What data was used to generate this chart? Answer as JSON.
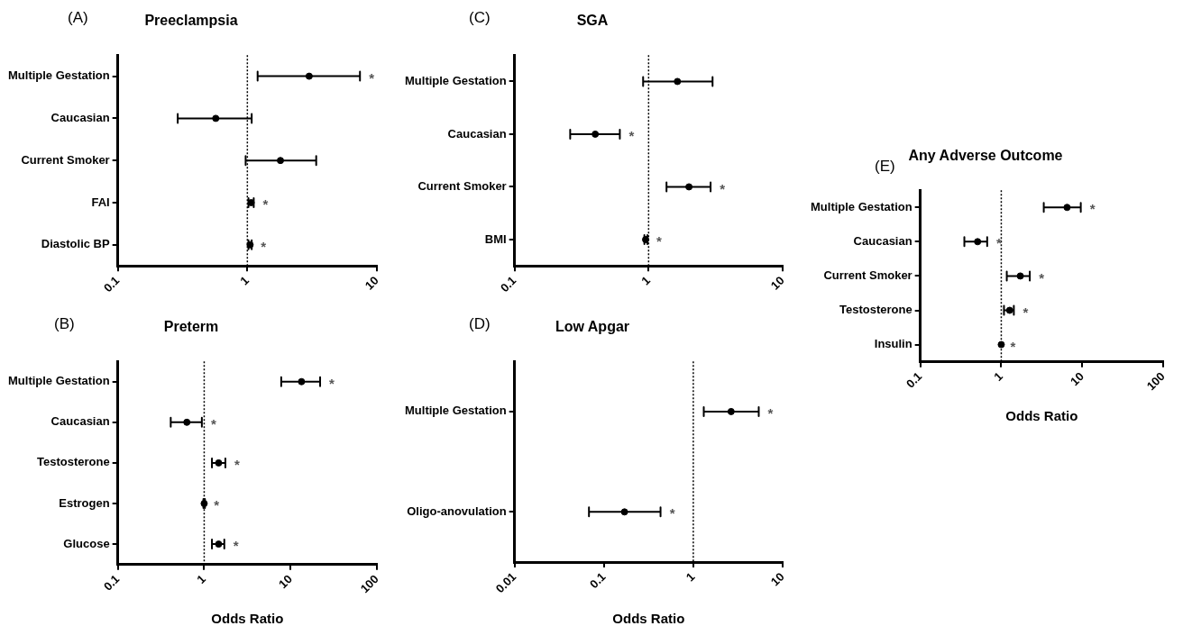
{
  "chart_data": [
    {
      "type": "scatter",
      "orientation": "horizontal",
      "title": "Preeclampsia",
      "log": "x",
      "grid": false,
      "marker": "circle",
      "color": "#000000",
      "categories": [
        "Multiple Gestation",
        "Caucasian",
        "Current Smoker",
        "FAI",
        "Diastolic BP"
      ],
      "values": [
        3.0,
        0.57,
        1.8,
        1.07,
        1.05
      ],
      "errors": [
        [
          1.2,
          7.4
        ],
        [
          0.29,
          1.08
        ],
        [
          0.97,
          3.4
        ],
        [
          1.02,
          1.12
        ],
        [
          1.02,
          1.08
        ]
      ],
      "xlim": [
        0.1,
        10
      ],
      "xticks": [
        0.1,
        1,
        10
      ],
      "ref_lines": [
        {
          "axis": "x",
          "value": 1,
          "line_style": "dotted"
        }
      ],
      "annotations": [
        "(A)",
        {
          "text": "*",
          "x": 7.4,
          "y": "Multiple Gestation"
        },
        {
          "text": "*",
          "x": 1.12,
          "y": "FAI"
        },
        {
          "text": "*",
          "x": 1.08,
          "y": "Diastolic BP"
        }
      ]
    },
    {
      "type": "scatter",
      "orientation": "horizontal",
      "title": "Preterm",
      "xlabel": "Odds Ratio",
      "log": "x",
      "grid": false,
      "marker": "circle",
      "color": "#000000",
      "categories": [
        "Multiple Gestation",
        "Caucasian",
        "Testosterone",
        "Estrogen",
        "Glucose"
      ],
      "values": [
        13.4,
        0.63,
        1.47,
        1.0,
        1.47
      ],
      "errors": [
        [
          7.8,
          22
        ],
        [
          0.41,
          0.94
        ],
        [
          1.23,
          1.76
        ],
        [
          0.98,
          1.02
        ],
        [
          1.23,
          1.71
        ]
      ],
      "xlim": [
        0.1,
        100
      ],
      "xticks": [
        0.1,
        1,
        10,
        100
      ],
      "ref_lines": [
        {
          "axis": "x",
          "value": 1,
          "line_style": "dotted"
        }
      ],
      "annotations": [
        "(B)",
        {
          "text": "*",
          "x": 22,
          "y": "Multiple Gestation"
        },
        {
          "text": "*",
          "x": 0.94,
          "y": "Caucasian"
        },
        {
          "text": "*",
          "x": 1.76,
          "y": "Testosterone"
        },
        {
          "text": "*",
          "x": 1.02,
          "y": "Estrogen"
        },
        {
          "text": "*",
          "x": 1.71,
          "y": "Glucose"
        }
      ]
    },
    {
      "type": "scatter",
      "orientation": "horizontal",
      "title": "SGA",
      "log": "x",
      "grid": false,
      "marker": "circle",
      "color": "#000000",
      "categories": [
        "Multiple Gestation",
        "Caucasian",
        "Current Smoker",
        "BMI"
      ],
      "values": [
        1.64,
        0.4,
        2.0,
        0.95
      ],
      "errors": [
        [
          0.91,
          3.0
        ],
        [
          0.26,
          0.61
        ],
        [
          1.36,
          2.9
        ],
        [
          0.93,
          0.98
        ]
      ],
      "xlim": [
        0.1,
        10
      ],
      "xticks": [
        0.1,
        1,
        10
      ],
      "ref_lines": [
        {
          "axis": "x",
          "value": 1,
          "line_style": "dotted"
        }
      ],
      "annotations": [
        "(C)",
        {
          "text": "*",
          "x": 0.61,
          "y": "Caucasian"
        },
        {
          "text": "*",
          "x": 2.9,
          "y": "Current Smoker"
        },
        {
          "text": "*",
          "x": 0.98,
          "y": "BMI"
        }
      ]
    },
    {
      "type": "scatter",
      "orientation": "horizontal",
      "title": "Low Apgar",
      "xlabel": "Odds Ratio",
      "log": "x",
      "grid": false,
      "marker": "circle",
      "color": "#000000",
      "categories": [
        "Multiple Gestation",
        "Oligo-anovulation"
      ],
      "values": [
        2.65,
        0.17
      ],
      "errors": [
        [
          1.31,
          5.4
        ],
        [
          0.068,
          0.43
        ]
      ],
      "xlim": [
        0.01,
        10
      ],
      "xticks": [
        0.01,
        0.1,
        1,
        10
      ],
      "ref_lines": [
        {
          "axis": "x",
          "value": 1,
          "line_style": "dotted"
        }
      ],
      "annotations": [
        "(D)",
        {
          "text": "*",
          "x": 5.4,
          "y": "Multiple Gestation"
        },
        {
          "text": "*",
          "x": 0.43,
          "y": "Oligo-anovulation"
        }
      ]
    },
    {
      "type": "scatter",
      "orientation": "horizontal",
      "title": "Any Adverse Outcome",
      "xlabel": "Odds Ratio",
      "log": "x",
      "grid": false,
      "marker": "circle",
      "color": "#000000",
      "categories": [
        "Multiple Gestation",
        "Caucasian",
        "Current Smoker",
        "Testosterone",
        "Insulin"
      ],
      "values": [
        6.5,
        0.51,
        1.72,
        1.27,
        1.0
      ],
      "errors": [
        [
          3.35,
          9.6
        ],
        [
          0.35,
          0.67
        ],
        [
          1.17,
          2.25
        ],
        [
          1.08,
          1.43
        ],
        null
      ],
      "xlim": [
        0.1,
        100
      ],
      "xticks": [
        0.1,
        1,
        10,
        100
      ],
      "ref_lines": [
        {
          "axis": "x",
          "value": 1,
          "line_style": "dotted"
        }
      ],
      "annotations": [
        "(E)",
        {
          "text": "*",
          "x": 9.6,
          "y": "Multiple Gestation"
        },
        {
          "text": "*",
          "x": 0.67,
          "y": "Caucasian"
        },
        {
          "text": "*",
          "x": 2.25,
          "y": "Current Smoker"
        },
        {
          "text": "*",
          "x": 1.43,
          "y": "Testosterone"
        },
        {
          "text": "*",
          "x": 1.0,
          "y": "Insulin"
        }
      ]
    }
  ]
}
